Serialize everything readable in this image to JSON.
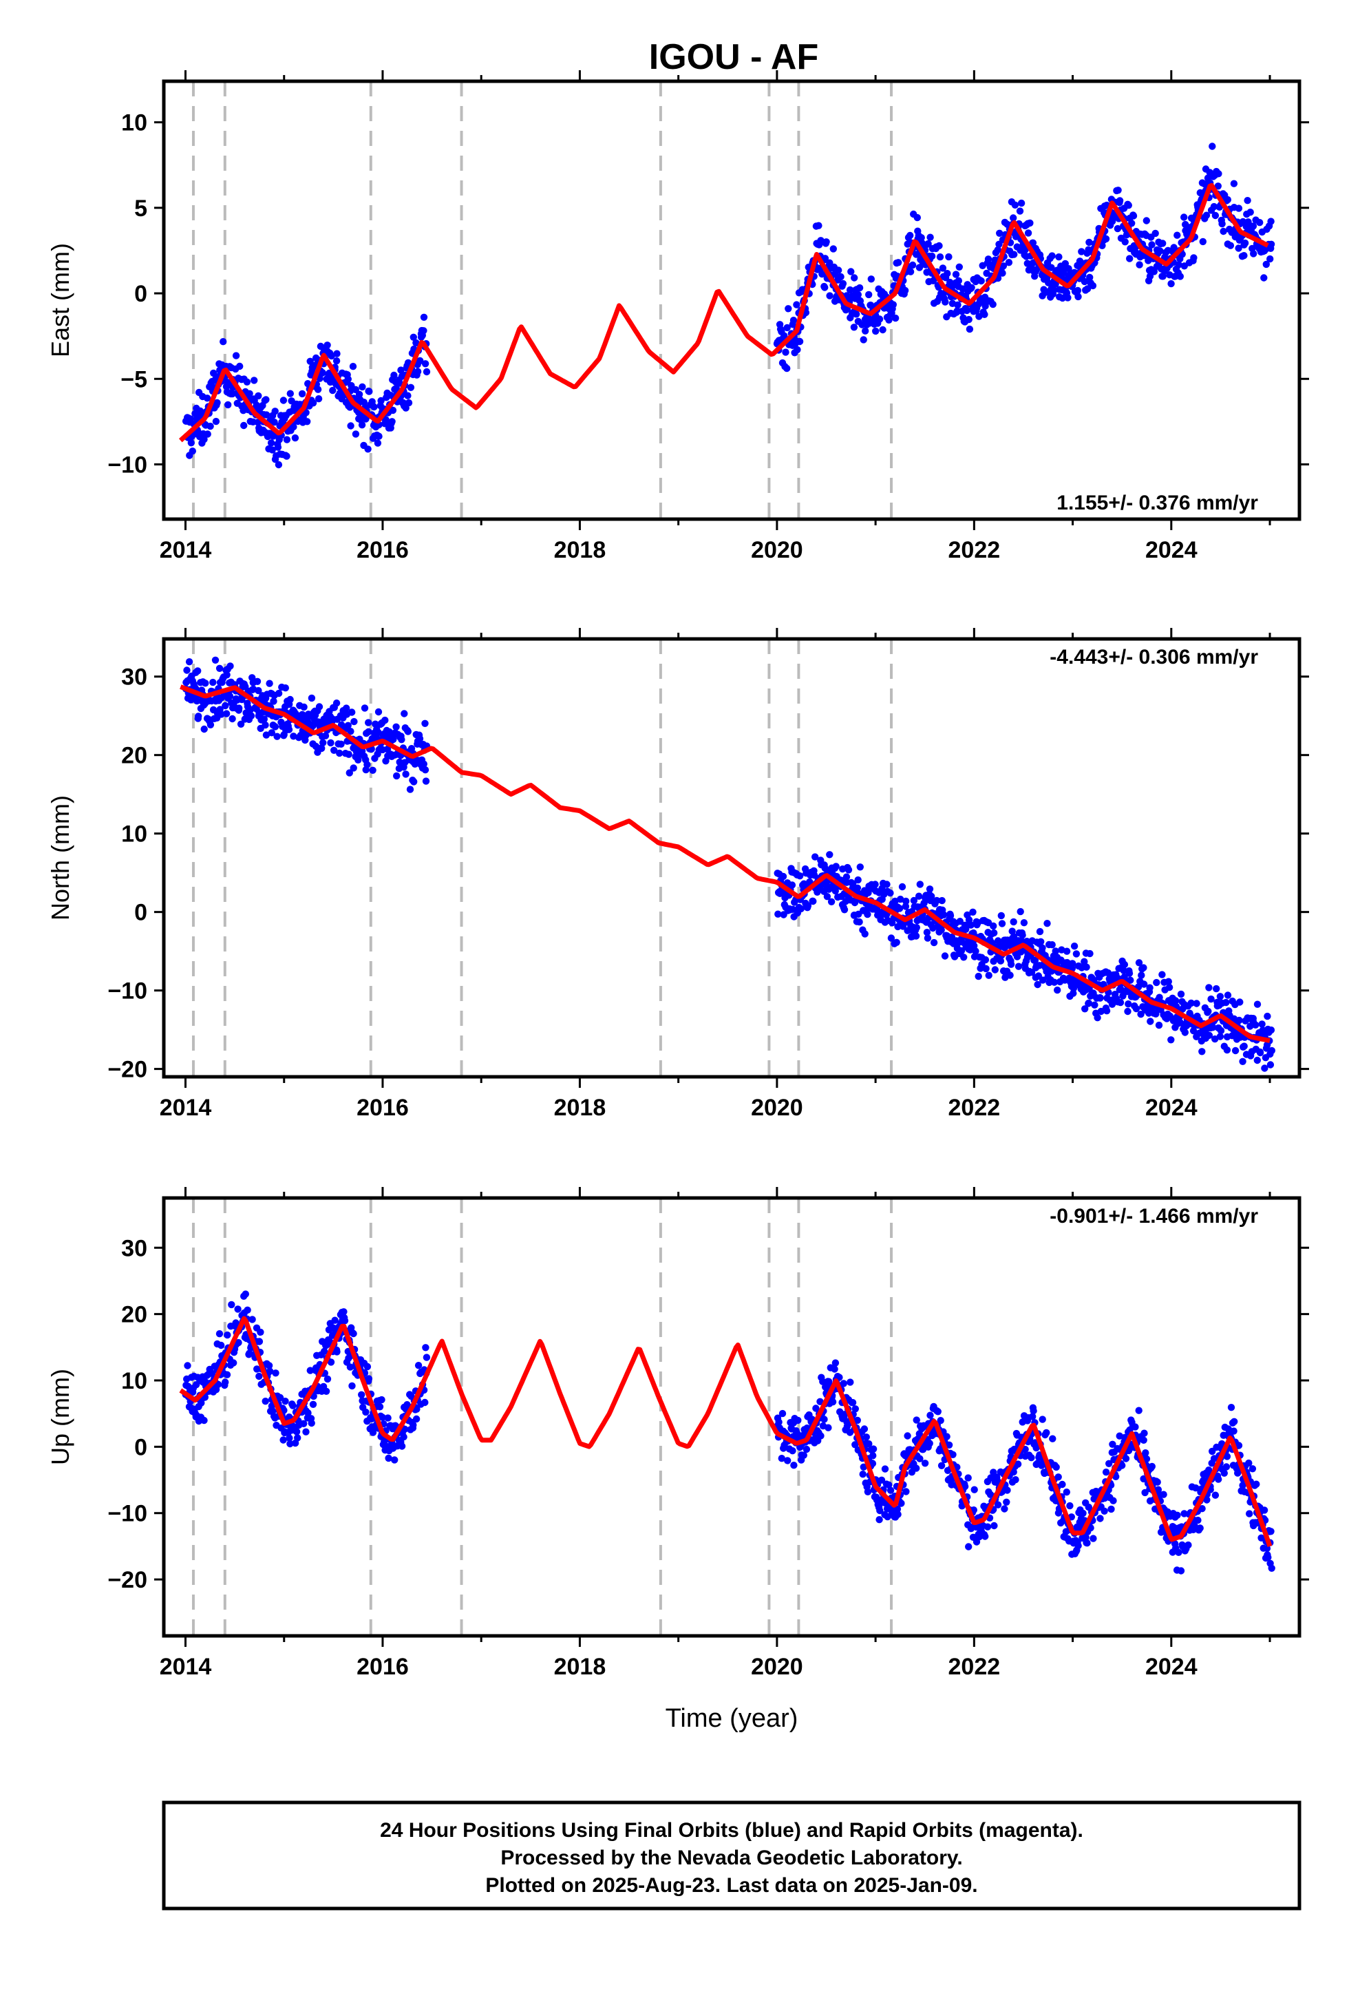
{
  "title": "IGOU - AF",
  "colors": {
    "points": "#0000ff",
    "model": "#ff0000",
    "breaks": "#bbbbbb",
    "frame": "#000000"
  },
  "footer": {
    "line1": "24 Hour Positions Using Final Orbits (blue) and Rapid Orbits (magenta).",
    "line2": "Processed by the Nevada Geodetic Laboratory.",
    "line3": "Plotted on 2025-Aug-23. Last data on 2025-Jan-09."
  },
  "chart_data": [
    {
      "type": "scatter",
      "ylabel": "East (mm)",
      "xlabel": "",
      "xlim": [
        2013.78,
        2025.3
      ],
      "ylim": [
        -13.2,
        12.4
      ],
      "xticks": [
        2014,
        2016,
        2018,
        2020,
        2022,
        2024
      ],
      "xtick_labels": [
        "2014",
        "2016",
        "2018",
        "2020",
        "2022",
        "2024"
      ],
      "yticks": [
        -10,
        -5,
        0,
        5,
        10
      ],
      "ytick_labels": [
        "−10",
        "−5",
        "0",
        "5",
        "10"
      ],
      "rate_label": "1.155+/- 0.376 mm/yr",
      "rate_position": "bottom-right",
      "breaks": [
        2014.08,
        2014.4,
        2015.88,
        2016.8,
        2018.82,
        2019.92,
        2020.22,
        2021.16
      ],
      "model": {
        "x": [
          2013.95,
          2014.2,
          2014.4,
          2014.7,
          2014.95,
          2015.2,
          2015.4,
          2015.7,
          2015.95,
          2016.2,
          2016.4,
          2016.7,
          2016.95,
          2017.2,
          2017.4,
          2017.7,
          2017.95,
          2018.2,
          2018.4,
          2018.7,
          2018.95,
          2019.2,
          2019.4,
          2019.7,
          2019.95,
          2020.2,
          2020.4,
          2020.7,
          2020.95,
          2021.2,
          2021.4,
          2021.7,
          2021.95,
          2022.2,
          2022.4,
          2022.7,
          2022.95,
          2023.2,
          2023.4,
          2023.7,
          2023.95,
          2024.2,
          2024.4,
          2024.7,
          2024.98
        ],
        "y": [
          -8.6,
          -7.3,
          -4.4,
          -7.0,
          -8.2,
          -6.7,
          -3.6,
          -6.4,
          -7.5,
          -5.6,
          -2.8,
          -5.6,
          -6.7,
          -5.0,
          -1.9,
          -4.7,
          -5.5,
          -3.8,
          -0.7,
          -3.4,
          -4.6,
          -2.9,
          0.2,
          -2.5,
          -3.6,
          -2.2,
          2.3,
          -0.6,
          -1.2,
          0.0,
          3.1,
          0.3,
          -0.6,
          0.9,
          4.2,
          1.4,
          0.4,
          2.0,
          5.3,
          2.6,
          1.7,
          3.2,
          6.4,
          3.6,
          2.8
        ]
      },
      "series": [
        {
          "x": [
            2014.0,
            2014.2,
            2014.5,
            2014.8,
            2015.0,
            2015.2,
            2015.5,
            2015.8,
            2016.0,
            2016.2,
            2016.4,
            2020.0,
            2020.2,
            2020.5,
            2020.8,
            2021.0,
            2021.2,
            2021.5,
            2021.8,
            2022.0,
            2022.2,
            2022.5,
            2022.8,
            2023.0,
            2023.2,
            2023.5,
            2023.8,
            2024.0,
            2024.2,
            2024.5,
            2024.8,
            2025.0
          ],
          "y": [
            -9.5,
            -6.5,
            -3.5,
            -7.5,
            -9.0,
            -6.0,
            -2.5,
            -6.5,
            -8.0,
            -5.0,
            -2.0,
            -4.5,
            -1.0,
            2.5,
            -1.0,
            -2.0,
            0.5,
            3.5,
            0.5,
            -1.0,
            1.5,
            4.5,
            1.0,
            0.0,
            2.5,
            6.0,
            2.5,
            1.0,
            3.5,
            7.0,
            3.0,
            2.5
          ]
        }
      ]
    },
    {
      "type": "scatter",
      "ylabel": "North (mm)",
      "xlabel": "",
      "xlim": [
        2013.78,
        2025.3
      ],
      "ylim": [
        -21,
        34.8
      ],
      "xticks": [
        2014,
        2016,
        2018,
        2020,
        2022,
        2024
      ],
      "xtick_labels": [
        "2014",
        "2016",
        "2018",
        "2020",
        "2022",
        "2024"
      ],
      "yticks": [
        -20,
        -10,
        0,
        10,
        20,
        30
      ],
      "ytick_labels": [
        "−20",
        "−10",
        "0",
        "10",
        "20",
        "30"
      ],
      "rate_label": "-4.443+/- 0.306 mm/yr",
      "rate_position": "top-right",
      "breaks": [
        2014.08,
        2014.4,
        2015.88,
        2016.8,
        2018.82,
        2019.92,
        2020.22,
        2021.16
      ],
      "model": {
        "x": [
          2013.95,
          2014.2,
          2014.5,
          2014.8,
          2015.0,
          2015.3,
          2015.5,
          2015.8,
          2016.0,
          2016.3,
          2016.5,
          2016.8,
          2017.0,
          2017.3,
          2017.5,
          2017.8,
          2018.0,
          2018.3,
          2018.5,
          2018.8,
          2019.0,
          2019.3,
          2019.5,
          2019.8,
          2020.0,
          2020.22,
          2020.5,
          2020.8,
          2021.0,
          2021.3,
          2021.5,
          2021.8,
          2022.0,
          2022.3,
          2022.5,
          2022.8,
          2023.0,
          2023.3,
          2023.5,
          2023.8,
          2024.0,
          2024.3,
          2024.5,
          2024.8,
          2025.0
        ],
        "y": [
          28.7,
          27.5,
          28.6,
          26.0,
          25.2,
          22.8,
          23.8,
          21.0,
          21.8,
          19.8,
          20.9,
          17.8,
          17.4,
          15.0,
          16.2,
          13.3,
          12.9,
          10.6,
          11.6,
          8.8,
          8.3,
          6.0,
          7.1,
          4.3,
          3.8,
          1.9,
          4.7,
          2.0,
          1.2,
          -1.0,
          0.3,
          -2.6,
          -3.3,
          -5.4,
          -4.2,
          -7.0,
          -7.8,
          -10.0,
          -8.8,
          -11.5,
          -12.3,
          -14.5,
          -13.2,
          -15.9,
          -16.4
        ]
      },
      "series": [
        {
          "x": [
            2014.0,
            2014.3,
            2014.6,
            2014.9,
            2015.2,
            2015.5,
            2015.8,
            2016.1,
            2016.4,
            2020.0,
            2020.3,
            2020.5,
            2020.8,
            2021.1,
            2021.4,
            2021.6,
            2022.0,
            2022.3,
            2022.6,
            2022.9,
            2023.2,
            2023.5,
            2023.8,
            2024.1,
            2024.4,
            2024.7,
            2025.0
          ],
          "y": [
            28.5,
            28.0,
            27.5,
            25.5,
            23.5,
            23.0,
            21.5,
            21.0,
            19.5,
            3.5,
            3.0,
            5.5,
            2.0,
            1.0,
            -0.5,
            0.5,
            -3.5,
            -5.0,
            -5.5,
            -7.0,
            -9.0,
            -9.0,
            -11.0,
            -12.5,
            -13.5,
            -15.0,
            -16.5
          ]
        }
      ]
    },
    {
      "type": "scatter",
      "ylabel": "Up (mm)",
      "xlabel": "Time (year)",
      "xlim": [
        2013.78,
        2025.3
      ],
      "ylim": [
        -28.5,
        37.5
      ],
      "xticks": [
        2014,
        2016,
        2018,
        2020,
        2022,
        2024
      ],
      "xtick_labels": [
        "2014",
        "2016",
        "2018",
        "2020",
        "2022",
        "2024"
      ],
      "yticks": [
        -20,
        -10,
        0,
        10,
        20,
        30
      ],
      "ytick_labels": [
        "−20",
        "−10",
        "0",
        "10",
        "20",
        "30"
      ],
      "rate_label": "-0.901+/- 1.466 mm/yr",
      "rate_position": "top-right",
      "breaks": [
        2014.08,
        2014.4,
        2015.88,
        2016.8,
        2018.82,
        2019.92,
        2020.22,
        2021.16
      ],
      "model": {
        "x": [
          2013.95,
          2014.1,
          2014.3,
          2014.6,
          2014.8,
          2015.0,
          2015.1,
          2015.3,
          2015.6,
          2015.8,
          2016.0,
          2016.1,
          2016.3,
          2016.6,
          2016.8,
          2017.0,
          2017.1,
          2017.3,
          2017.6,
          2017.8,
          2018.0,
          2018.1,
          2018.3,
          2018.6,
          2018.8,
          2019.0,
          2019.1,
          2019.3,
          2019.6,
          2019.8,
          2020.0,
          2020.2,
          2020.3,
          2020.6,
          2020.8,
          2021.0,
          2021.2,
          2021.3,
          2021.6,
          2021.8,
          2022.0,
          2022.1,
          2022.3,
          2022.6,
          2022.8,
          2023.0,
          2023.1,
          2023.3,
          2023.6,
          2023.8,
          2024.0,
          2024.1,
          2024.3,
          2024.6,
          2024.8,
          2025.0
        ],
        "y": [
          8.5,
          7.0,
          10.0,
          19.5,
          11.0,
          3.5,
          4.0,
          9.0,
          18.5,
          10.0,
          2.0,
          1.0,
          6.0,
          16.0,
          8.0,
          1.0,
          1.0,
          6.0,
          16.0,
          8.0,
          0.5,
          0.0,
          5.0,
          15.0,
          7.5,
          0.5,
          0.0,
          5.0,
          15.5,
          7.5,
          2.0,
          0.5,
          1.0,
          10.0,
          2.5,
          -6.0,
          -9.0,
          -3.0,
          4.0,
          -4.0,
          -11.5,
          -11.0,
          -5.0,
          3.5,
          -5.0,
          -13.0,
          -13.0,
          -7.0,
          2.0,
          -6.0,
          -14.0,
          -13.5,
          -8.0,
          1.5,
          -6.5,
          -15.0
        ]
      },
      "series": [
        {
          "x": [
            2014.0,
            2014.2,
            2014.4,
            2014.6,
            2014.8,
            2015.0,
            2015.2,
            2015.4,
            2015.6,
            2015.8,
            2016.0,
            2016.2,
            2016.4,
            2020.0,
            2020.2,
            2020.4,
            2020.6,
            2020.8,
            2021.0,
            2021.2,
            2021.4,
            2021.6,
            2021.8,
            2022.0,
            2022.2,
            2022.4,
            2022.6,
            2022.8,
            2023.0,
            2023.2,
            2023.4,
            2023.6,
            2023.8,
            2024.0,
            2024.2,
            2024.4,
            2024.6,
            2024.8,
            2025.0
          ],
          "y": [
            6.0,
            9.0,
            14.0,
            22.0,
            12.0,
            3.0,
            5.0,
            12.0,
            20.0,
            9.0,
            0.0,
            2.0,
            8.0,
            4.0,
            8.0,
            6.0,
            12.0,
            1.0,
            -6.0,
            -3.0,
            -5.0,
            3.0,
            -3.0,
            -12.0,
            -10.0,
            -4.0,
            4.0,
            -4.0,
            -12.0,
            -11.0,
            -6.0,
            2.0,
            -5.0,
            -13.0,
            -11.0,
            -6.0,
            2.0,
            -5.0,
            -14.0
          ]
        }
      ]
    }
  ]
}
